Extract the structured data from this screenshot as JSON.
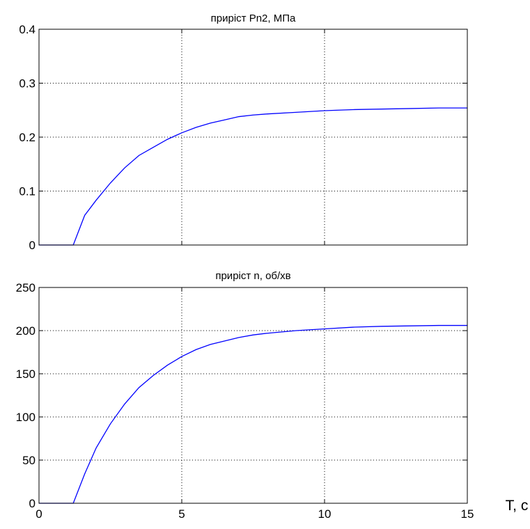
{
  "chart_data": [
    {
      "type": "line",
      "title": "приріст Pn2, МПа",
      "xlim": [
        0,
        15
      ],
      "ylim": [
        0,
        0.4
      ],
      "xticks": [
        0,
        5,
        10,
        15
      ],
      "yticks": [
        0,
        0.1,
        0.2,
        0.3,
        0.4
      ],
      "ytick_labels": [
        "0",
        "0.1",
        "0.2",
        "0.3",
        "0.4"
      ],
      "xtick_labels": [],
      "grid": true,
      "series": [
        {
          "color": "#0000ff",
          "x": [
            0,
            1.2,
            1.6,
            2.0,
            2.5,
            3.0,
            3.5,
            4.0,
            4.5,
            5.0,
            5.5,
            6.0,
            6.5,
            7.0,
            7.5,
            8.0,
            9.0,
            10.0,
            11.0,
            12.0,
            13.0,
            14.0,
            15.0
          ],
          "y": [
            0,
            0,
            0.055,
            0.083,
            0.115,
            0.143,
            0.166,
            0.181,
            0.196,
            0.208,
            0.218,
            0.226,
            0.232,
            0.238,
            0.241,
            0.243,
            0.246,
            0.249,
            0.251,
            0.252,
            0.253,
            0.254,
            0.254
          ]
        }
      ]
    },
    {
      "type": "line",
      "title": "приріст n, об/хв",
      "xlim": [
        0,
        15
      ],
      "ylim": [
        0,
        250
      ],
      "xticks": [
        0,
        5,
        10,
        15
      ],
      "yticks": [
        0,
        50,
        100,
        150,
        200,
        250
      ],
      "ytick_labels": [
        "0",
        "50",
        "100",
        "150",
        "200",
        "250"
      ],
      "xtick_labels": [
        "0",
        "5",
        "10",
        "15"
      ],
      "xlabel": "T, c",
      "grid": true,
      "series": [
        {
          "color": "#0000ff",
          "x": [
            0,
            1.2,
            1.6,
            2.0,
            2.5,
            3.0,
            3.5,
            4.0,
            4.5,
            5.0,
            5.5,
            6.0,
            6.5,
            7.0,
            7.5,
            8.0,
            9.0,
            10.0,
            11.0,
            12.0,
            13.0,
            14.0,
            15.0
          ],
          "y": [
            0,
            0,
            34,
            64,
            92,
            115,
            134,
            148,
            160,
            170,
            178,
            184,
            188,
            192,
            195,
            197,
            200,
            202,
            204,
            205,
            205.5,
            206,
            206
          ]
        }
      ]
    }
  ]
}
